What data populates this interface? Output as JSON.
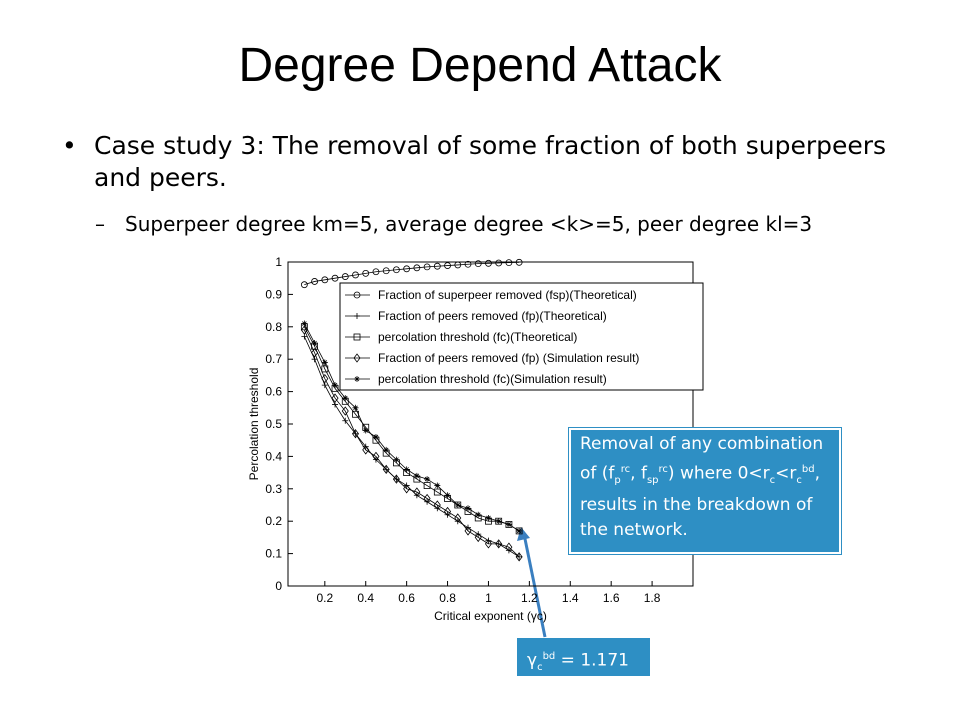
{
  "slide": {
    "title": "Degree Depend Attack",
    "bullet1": "Case study 3: The removal of some fraction of both superpeers and peers.",
    "bullet2": "Superpeer degree km=5, average degree <k>=5, peer degree kl=3"
  },
  "callout": {
    "segments": [
      "Removal of any combination of (f",
      "p",
      "rc",
      ", f",
      "sp",
      "rc",
      ") where 0<r",
      "c",
      "<r",
      "c",
      "bd",
      ", results in the breakdown of the network."
    ]
  },
  "threshold_label": {
    "segments": [
      "γ",
      "c",
      "bd",
      " = 1.171"
    ]
  },
  "chart_data": {
    "type": "line",
    "x_label": "Critical exponent (γc)",
    "y_label": "Percolation threshold",
    "xlim": [
      0.02,
      2.0
    ],
    "xticks": [
      0.2,
      0.4,
      0.6,
      0.8,
      1,
      1.2,
      1.4,
      1.6,
      1.8
    ],
    "ylim": [
      0,
      1
    ],
    "yticks": [
      0,
      0.1,
      0.2,
      0.3,
      0.4,
      0.5,
      0.6,
      0.7,
      0.8,
      0.9,
      1
    ],
    "x": [
      0.1,
      0.15,
      0.2,
      0.25,
      0.3,
      0.35,
      0.4,
      0.45,
      0.5,
      0.55,
      0.6,
      0.65,
      0.7,
      0.75,
      0.8,
      0.85,
      0.9,
      0.95,
      1.0,
      1.05,
      1.1,
      1.15
    ],
    "series": [
      {
        "name": "Fraction of superpeer removed (fsp)(Theoretical)",
        "color": "#000",
        "marker": "circle",
        "values": [
          0.93,
          0.94,
          0.945,
          0.95,
          0.955,
          0.96,
          0.965,
          0.97,
          0.973,
          0.976,
          0.979,
          0.982,
          0.985,
          0.987,
          0.989,
          0.991,
          0.993,
          0.995,
          0.996,
          0.997,
          0.998,
          0.999
        ]
      },
      {
        "name": "Fraction of peers removed (fp)(Theoretical)",
        "color": "#000",
        "marker": "plus",
        "values": [
          0.77,
          0.7,
          0.62,
          0.56,
          0.51,
          0.47,
          0.43,
          0.39,
          0.36,
          0.33,
          0.31,
          0.28,
          0.26,
          0.24,
          0.22,
          0.2,
          0.18,
          0.16,
          0.14,
          0.13,
          0.11,
          0.09
        ]
      },
      {
        "name": "percolation threshold (fc)(Theoretical)",
        "color": "#000",
        "marker": "square",
        "values": [
          0.8,
          0.74,
          0.67,
          0.61,
          0.57,
          0.53,
          0.49,
          0.45,
          0.41,
          0.38,
          0.35,
          0.33,
          0.31,
          0.29,
          0.27,
          0.25,
          0.23,
          0.21,
          0.2,
          0.2,
          0.19,
          0.17
        ]
      },
      {
        "name": "Fraction of peers removed (fp) (Simulation result)",
        "color": "#000",
        "marker": "diamond",
        "values": [
          0.79,
          0.72,
          0.64,
          0.58,
          0.54,
          0.47,
          0.42,
          0.4,
          0.36,
          0.33,
          0.3,
          0.29,
          0.27,
          0.25,
          0.23,
          0.21,
          0.17,
          0.15,
          0.13,
          0.13,
          0.12,
          0.09
        ]
      },
      {
        "name": "percolation threshold (fc)(Simulation result)",
        "color": "#000",
        "marker": "star",
        "values": [
          0.81,
          0.75,
          0.69,
          0.62,
          0.58,
          0.55,
          0.48,
          0.46,
          0.42,
          0.39,
          0.36,
          0.34,
          0.33,
          0.31,
          0.28,
          0.25,
          0.24,
          0.22,
          0.21,
          0.2,
          0.19,
          0.17
        ]
      }
    ]
  }
}
